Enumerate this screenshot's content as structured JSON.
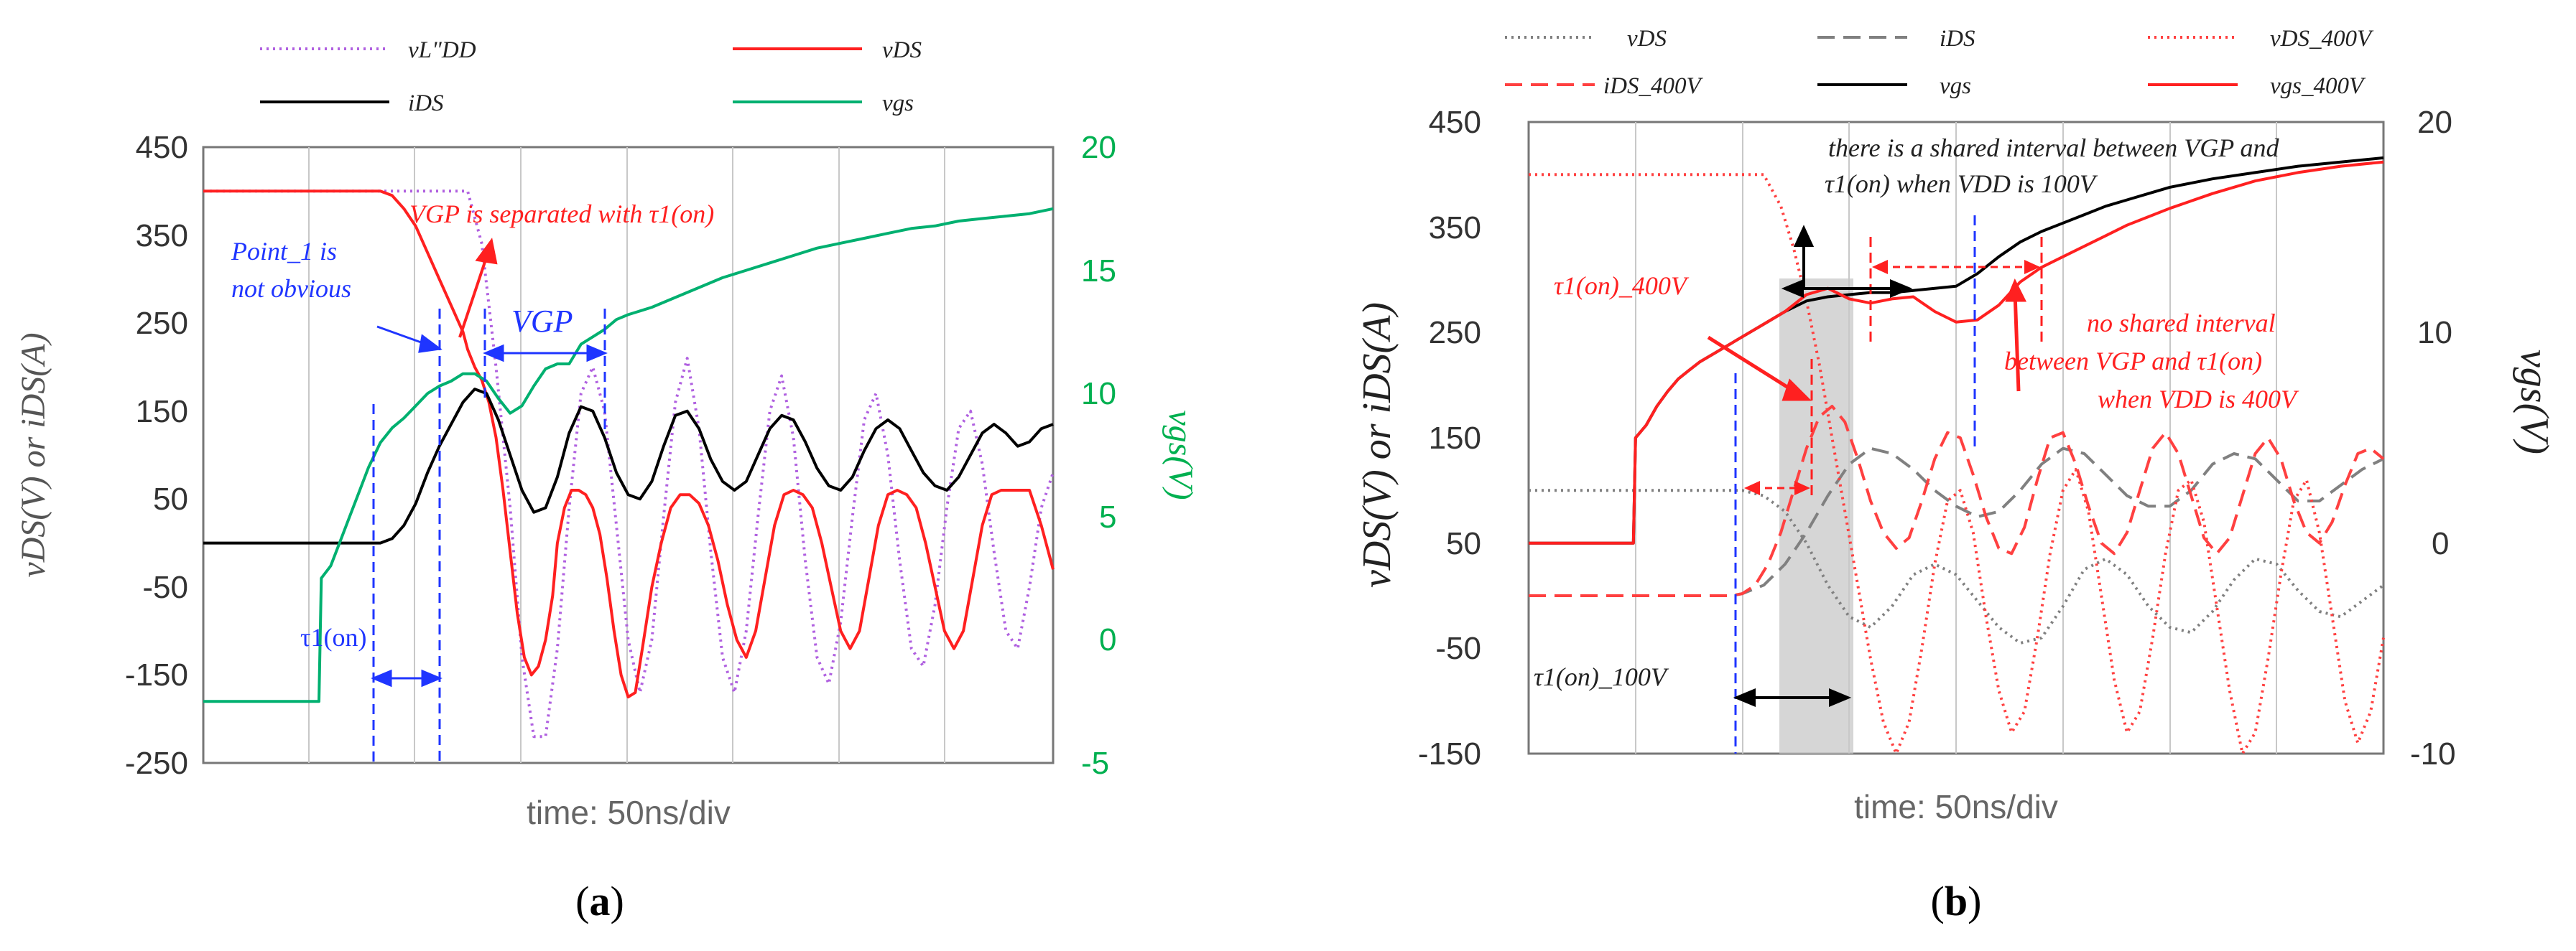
{
  "chart_data": [
    {
      "type": "line",
      "panel": "(a)",
      "caption_open": "(",
      "caption_letter": "a",
      "caption_close": ")",
      "xlabel": "time: 50ns/div",
      "ylabel_left": "vDS(V) or iDS(A)",
      "ylabel_right": "vgs(V)",
      "ylim_left": [
        -250,
        450
      ],
      "ylim_right": [
        -5,
        20
      ],
      "xlim": [
        0,
        360
      ],
      "left_ticks": [
        "450",
        "350",
        "250",
        "150",
        "50",
        "-50",
        "-150",
        "-250"
      ],
      "right_ticks": [
        "20",
        "15",
        "10",
        "5",
        "0",
        "-5"
      ],
      "legend": [
        "vL\"DD",
        "vDS",
        "iDS",
        "vgs"
      ],
      "series": [
        {
          "name": "vL\"DD",
          "axis": "left",
          "color": "#b060e0",
          "dash": "dotted",
          "x": [
            0,
            112,
            118,
            124,
            130,
            135,
            140,
            145,
            150,
            155,
            160,
            165,
            170,
            175,
            180,
            185,
            190,
            195,
            200,
            205,
            210,
            215,
            220,
            225,
            230,
            235,
            240,
            245,
            250,
            255,
            260,
            265,
            270,
            275,
            280,
            285,
            290,
            295,
            300,
            305,
            310,
            315,
            320,
            325,
            330,
            335,
            340,
            345,
            350,
            355,
            360
          ],
          "y": [
            400,
            400,
            340,
            200,
            40,
            -130,
            -220,
            -220,
            -120,
            40,
            170,
            200,
            150,
            20,
            -110,
            -170,
            -110,
            30,
            160,
            210,
            130,
            -10,
            -130,
            -170,
            -100,
            30,
            150,
            190,
            120,
            -20,
            -130,
            -160,
            -90,
            30,
            140,
            170,
            100,
            -20,
            -120,
            -140,
            -70,
            40,
            130,
            150,
            90,
            -10,
            -100,
            -120,
            -50,
            40,
            80
          ]
        },
        {
          "name": "vDS",
          "axis": "left",
          "color": "#ff2020",
          "dash": "",
          "x": [
            0,
            75,
            80,
            85,
            90,
            95,
            100,
            105,
            110,
            112,
            115,
            118,
            121,
            124,
            127,
            130,
            133,
            136,
            139,
            142,
            145,
            148,
            150,
            153,
            156,
            159,
            162,
            165,
            168,
            171,
            174,
            177,
            180,
            183,
            186,
            190,
            194,
            198,
            202,
            206,
            210,
            214,
            218,
            222,
            226,
            230,
            234,
            238,
            242,
            246,
            250,
            254,
            258,
            262,
            266,
            270,
            274,
            278,
            282,
            286,
            290,
            294,
            298,
            302,
            306,
            310,
            314,
            318,
            322,
            326,
            330,
            334,
            338,
            342,
            346,
            350,
            355,
            360
          ],
          "y": [
            400,
            400,
            395,
            380,
            360,
            330,
            300,
            270,
            240,
            220,
            200,
            185,
            160,
            120,
            60,
            -10,
            -80,
            -130,
            -150,
            -140,
            -110,
            -60,
            0,
            40,
            60,
            60,
            55,
            40,
            10,
            -40,
            -100,
            -150,
            -175,
            -170,
            -120,
            -50,
            0,
            40,
            55,
            55,
            45,
            20,
            -20,
            -70,
            -110,
            -130,
            -100,
            -40,
            20,
            55,
            60,
            55,
            40,
            0,
            -50,
            -100,
            -120,
            -100,
            -40,
            20,
            55,
            60,
            55,
            40,
            0,
            -50,
            -100,
            -120,
            -100,
            -40,
            20,
            55,
            60,
            60,
            60,
            60,
            20,
            -30
          ]
        },
        {
          "name": "iDS",
          "axis": "left",
          "color": "#000000",
          "dash": "",
          "x": [
            0,
            75,
            80,
            85,
            90,
            95,
            100,
            105,
            110,
            115,
            120,
            125,
            130,
            135,
            140,
            145,
            150,
            155,
            160,
            165,
            170,
            175,
            180,
            185,
            190,
            195,
            200,
            205,
            210,
            215,
            220,
            225,
            230,
            235,
            240,
            245,
            250,
            255,
            260,
            265,
            270,
            275,
            280,
            285,
            290,
            295,
            300,
            305,
            310,
            315,
            320,
            325,
            330,
            335,
            340,
            345,
            350,
            355,
            360
          ],
          "y": [
            0,
            0,
            5,
            20,
            45,
            80,
            110,
            135,
            160,
            175,
            170,
            140,
            100,
            60,
            35,
            40,
            75,
            125,
            155,
            150,
            120,
            80,
            55,
            50,
            70,
            110,
            145,
            150,
            130,
            95,
            70,
            60,
            70,
            100,
            130,
            145,
            140,
            115,
            85,
            65,
            60,
            75,
            105,
            130,
            140,
            130,
            105,
            80,
            65,
            60,
            75,
            100,
            125,
            135,
            125,
            110,
            115,
            130,
            135
          ]
        },
        {
          "name": "vgs",
          "axis": "right",
          "color": "#00b070",
          "dash": "",
          "x": [
            0,
            49,
            50,
            54,
            58,
            62,
            66,
            70,
            75,
            80,
            85,
            90,
            95,
            100,
            105,
            110,
            115,
            120,
            125,
            130,
            135,
            140,
            145,
            150,
            155,
            160,
            165,
            170,
            175,
            180,
            190,
            200,
            210,
            220,
            230,
            240,
            250,
            260,
            270,
            280,
            290,
            300,
            310,
            320,
            330,
            340,
            350,
            360
          ],
          "y": [
            -2.5,
            -2.5,
            2.5,
            3,
            4,
            5,
            6,
            7,
            8,
            8.6,
            9,
            9.5,
            10,
            10.3,
            10.5,
            10.8,
            10.8,
            10.5,
            9.8,
            9.2,
            9.5,
            10.3,
            11,
            11.2,
            11.2,
            12,
            12.3,
            12.6,
            13,
            13.2,
            13.5,
            13.9,
            14.3,
            14.7,
            15,
            15.3,
            15.6,
            15.9,
            16.1,
            16.3,
            16.5,
            16.7,
            16.8,
            17,
            17.1,
            17.2,
            17.3,
            17.5
          ]
        }
      ],
      "annotations": [
        "VGP is separated with τ1(on)",
        "Point_1 is",
        "not obvious",
        "VGP",
        "τ1(on)"
      ]
    },
    {
      "type": "line",
      "panel": "(b)",
      "caption_open": "(",
      "caption_letter": "b",
      "caption_close": ")",
      "xlabel": "time: 50ns/div",
      "ylabel_left": "vDS(V) or iDS(A)",
      "ylabel_right": "vgs(V)",
      "ylim_left": [
        -150,
        450
      ],
      "ylim_right": [
        -10,
        20
      ],
      "xlim": [
        0,
        400
      ],
      "left_ticks": [
        "450",
        "350",
        "250",
        "150",
        "50",
        "-50",
        "-150"
      ],
      "right_ticks": [
        "20",
        "10",
        "0",
        "-10"
      ],
      "legend": [
        "vDS",
        "iDS",
        "vDS_400V",
        "iDS_400V",
        "vgs",
        "vgs_400V"
      ],
      "series": [
        {
          "name": "vDS",
          "axis": "left",
          "color": "#808080",
          "dash": "dotted",
          "x": [
            0,
            100,
            110,
            120,
            130,
            140,
            150,
            160,
            170,
            180,
            190,
            200,
            210,
            220,
            230,
            240,
            250,
            260,
            270,
            280,
            290,
            300,
            310,
            320,
            330,
            340,
            350,
            360,
            370,
            380,
            390,
            400
          ],
          "y": [
            100,
            100,
            95,
            80,
            50,
            10,
            -20,
            -30,
            -10,
            20,
            30,
            20,
            -5,
            -30,
            -45,
            -40,
            -10,
            25,
            35,
            20,
            -10,
            -30,
            -35,
            -15,
            15,
            35,
            30,
            5,
            -15,
            -20,
            -5,
            10
          ]
        },
        {
          "name": "iDS",
          "axis": "left",
          "color": "#808080",
          "dash": "dashed",
          "x": [
            0,
            95,
            100,
            110,
            120,
            130,
            140,
            150,
            160,
            170,
            180,
            190,
            200,
            210,
            220,
            230,
            240,
            250,
            260,
            270,
            280,
            290,
            300,
            310,
            320,
            330,
            340,
            350,
            360,
            370,
            380,
            390,
            400
          ],
          "y": [
            0,
            0,
            2,
            10,
            30,
            60,
            95,
            125,
            140,
            135,
            120,
            100,
            85,
            75,
            80,
            100,
            125,
            140,
            135,
            115,
            95,
            85,
            85,
            100,
            125,
            135,
            130,
            110,
            90,
            90,
            105,
            120,
            130
          ]
        },
        {
          "name": "vDS_400V",
          "axis": "left",
          "color": "#ff4040",
          "dash": "dotted",
          "x": [
            0,
            110,
            118,
            124,
            130,
            136,
            142,
            148,
            154,
            160,
            166,
            172,
            178,
            184,
            190,
            196,
            202,
            208,
            214,
            220,
            226,
            232,
            238,
            244,
            250,
            256,
            262,
            268,
            274,
            280,
            286,
            292,
            298,
            304,
            310,
            316,
            322,
            328,
            334,
            340,
            346,
            352,
            358,
            364,
            370,
            376,
            382,
            388,
            394,
            400
          ],
          "y": [
            400,
            400,
            370,
            330,
            280,
            220,
            150,
            80,
            10,
            -60,
            -120,
            -150,
            -120,
            -50,
            30,
            90,
            100,
            60,
            -20,
            -90,
            -130,
            -110,
            -40,
            40,
            100,
            120,
            80,
            0,
            -80,
            -130,
            -110,
            -40,
            40,
            100,
            110,
            70,
            -10,
            -90,
            -150,
            -130,
            -60,
            20,
            90,
            110,
            60,
            -20,
            -100,
            -140,
            -110,
            -40
          ]
        },
        {
          "name": "iDS_400V",
          "axis": "left",
          "color": "#ff4040",
          "dash": "dashed",
          "x": [
            0,
            95,
            100,
            106,
            112,
            118,
            124,
            130,
            136,
            142,
            148,
            154,
            160,
            166,
            172,
            178,
            184,
            190,
            196,
            202,
            208,
            214,
            220,
            226,
            232,
            238,
            244,
            250,
            256,
            262,
            268,
            274,
            280,
            286,
            292,
            298,
            304,
            310,
            316,
            322,
            328,
            334,
            340,
            346,
            352,
            358,
            364,
            370,
            376,
            382,
            388,
            394,
            400
          ],
          "y": [
            0,
            0,
            2,
            10,
            30,
            60,
            100,
            140,
            170,
            180,
            165,
            130,
            90,
            60,
            45,
            55,
            90,
            130,
            155,
            150,
            115,
            75,
            45,
            40,
            65,
            110,
            150,
            155,
            125,
            85,
            50,
            40,
            60,
            100,
            140,
            155,
            135,
            95,
            55,
            40,
            55,
            95,
            135,
            150,
            130,
            90,
            60,
            50,
            70,
            105,
            135,
            140,
            130
          ]
        },
        {
          "name": "vgs",
          "axis": "right",
          "color": "#000000",
          "dash": "",
          "x": [
            0,
            49,
            50,
            55,
            60,
            65,
            70,
            75,
            80,
            90,
            100,
            110,
            120,
            130,
            140,
            150,
            160,
            170,
            180,
            190,
            200,
            210,
            220,
            230,
            240,
            250,
            260,
            270,
            280,
            290,
            300,
            320,
            340,
            360,
            380,
            400
          ],
          "y": [
            0,
            0,
            5,
            5.6,
            6.5,
            7.2,
            7.8,
            8.2,
            8.6,
            9.2,
            9.8,
            10.4,
            11,
            11.5,
            11.7,
            11.8,
            11.9,
            11.9,
            12,
            12.1,
            12.2,
            12.8,
            13.6,
            14.3,
            14.8,
            15.2,
            15.6,
            16,
            16.3,
            16.6,
            16.9,
            17.3,
            17.6,
            17.9,
            18.1,
            18.3
          ]
        },
        {
          "name": "vgs_400V",
          "axis": "right",
          "color": "#ff2020",
          "dash": "",
          "x": [
            0,
            49,
            50,
            55,
            60,
            65,
            70,
            75,
            80,
            90,
            100,
            110,
            120,
            130,
            140,
            150,
            160,
            170,
            180,
            190,
            200,
            210,
            220,
            230,
            240,
            250,
            260,
            270,
            280,
            290,
            300,
            320,
            340,
            360,
            380,
            400
          ],
          "y": [
            0,
            0,
            5,
            5.6,
            6.5,
            7.2,
            7.8,
            8.2,
            8.6,
            9.2,
            9.8,
            10.4,
            11,
            11.8,
            12.1,
            11.6,
            11.4,
            11.6,
            11.7,
            11,
            10.5,
            10.6,
            11.3,
            12.4,
            13.1,
            13.6,
            14.1,
            14.6,
            15.1,
            15.5,
            15.9,
            16.6,
            17.2,
            17.6,
            17.9,
            18.1
          ]
        }
      ],
      "annotations": [
        "there is a shared interval between VGP and",
        "τ1(on) when VDD is 100V",
        "τ1(on)_400V",
        "no shared interval",
        "between VGP and τ1(on)",
        "when VDD is 400V",
        "τ1(on)_100V"
      ]
    }
  ]
}
